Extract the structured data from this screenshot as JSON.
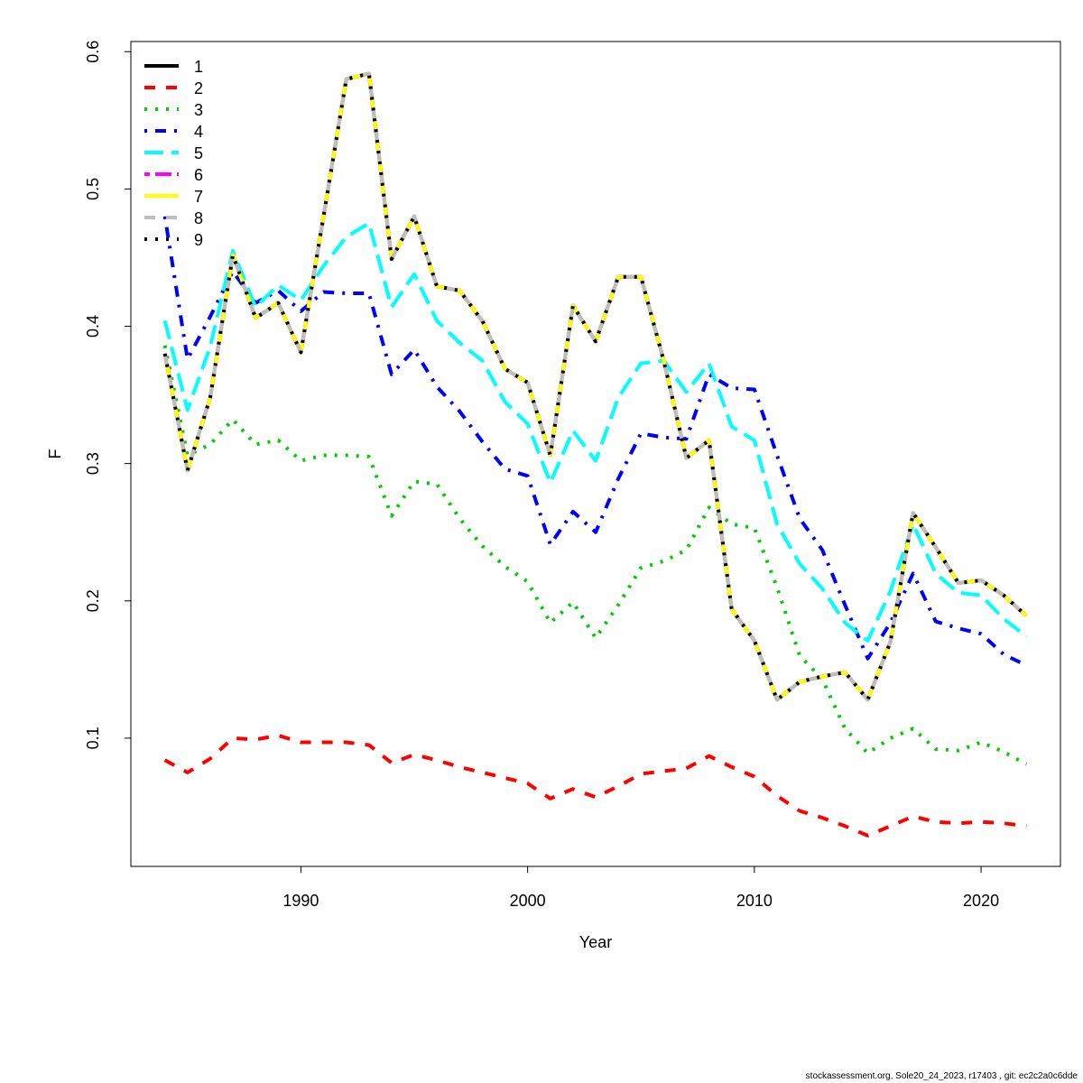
{
  "chart_data": {
    "type": "line",
    "title": "",
    "xlabel": "Year",
    "ylabel": "F",
    "xlim": [
      1982.5,
      2023.5
    ],
    "ylim": [
      0.0066,
      0.6074
    ],
    "xticks": [
      1990,
      2000,
      2010,
      2020
    ],
    "yticks": [
      0.1,
      0.2,
      0.3,
      0.4,
      0.5,
      0.6
    ],
    "ytick_labels": [
      "0.1",
      "0.2",
      "0.3",
      "0.4",
      "0.5",
      "0.6"
    ],
    "grid": false,
    "legend_position": "top-left",
    "x": [
      1984,
      1985,
      1986,
      1987,
      1988,
      1989,
      1990,
      1991,
      1992,
      1993,
      1994,
      1995,
      1996,
      1997,
      1998,
      1999,
      2000,
      2001,
      2002,
      2003,
      2004,
      2005,
      2006,
      2007,
      2008,
      2009,
      2010,
      2011,
      2012,
      2013,
      2014,
      2015,
      2016,
      2017,
      2018,
      2019,
      2020,
      2021,
      2022
    ],
    "series": [
      {
        "name": "1",
        "color": "#000000",
        "lty": "solid",
        "values": "base"
      },
      {
        "name": "2",
        "color": "#FF0000",
        "lty": "dashed",
        "values": [
          0.084,
          0.075,
          0.085,
          0.1,
          0.099,
          0.102,
          0.097,
          0.097,
          0.097,
          0.095,
          0.082,
          0.088,
          0.084,
          0.079,
          0.075,
          0.071,
          0.067,
          0.056,
          0.063,
          0.057,
          0.065,
          0.074,
          0.076,
          0.078,
          0.087,
          0.079,
          0.072,
          0.058,
          0.047,
          0.042,
          0.036,
          0.029,
          0.036,
          0.043,
          0.039,
          0.038,
          0.039,
          0.038,
          0.036
        ]
      },
      {
        "name": "3",
        "color": "#00CD00",
        "lty": "dotted",
        "values": [
          0.386,
          0.306,
          0.314,
          0.332,
          0.314,
          0.317,
          0.302,
          0.306,
          0.306,
          0.305,
          0.262,
          0.287,
          0.285,
          0.26,
          0.24,
          0.225,
          0.214,
          0.184,
          0.199,
          0.173,
          0.197,
          0.224,
          0.229,
          0.237,
          0.268,
          0.256,
          0.253,
          0.21,
          0.16,
          0.143,
          0.107,
          0.089,
          0.1,
          0.107,
          0.092,
          0.091,
          0.097,
          0.09,
          0.081
        ]
      },
      {
        "name": "4",
        "color": "#0000FF",
        "lty": "dotdash",
        "values": [
          0.48,
          0.376,
          0.407,
          0.44,
          0.417,
          0.426,
          0.411,
          0.425,
          0.424,
          0.424,
          0.365,
          0.383,
          0.356,
          0.338,
          0.316,
          0.296,
          0.291,
          0.241,
          0.265,
          0.25,
          0.289,
          0.322,
          0.319,
          0.318,
          0.365,
          0.355,
          0.354,
          0.306,
          0.26,
          0.237,
          0.197,
          0.158,
          0.184,
          0.22,
          0.185,
          0.18,
          0.176,
          0.161,
          0.153
        ]
      },
      {
        "name": "5",
        "color": "#00FFFF",
        "lty": "longdash",
        "values": [
          0.404,
          0.339,
          0.385,
          0.455,
          0.414,
          0.43,
          0.419,
          0.444,
          0.465,
          0.475,
          0.414,
          0.438,
          0.404,
          0.388,
          0.375,
          0.345,
          0.329,
          0.286,
          0.324,
          0.302,
          0.348,
          0.373,
          0.375,
          0.352,
          0.373,
          0.327,
          0.317,
          0.256,
          0.227,
          0.209,
          0.184,
          0.171,
          0.207,
          0.256,
          0.22,
          0.206,
          0.204,
          0.187,
          0.174
        ]
      },
      {
        "name": "6",
        "color": "#FF00FF",
        "lty": "twodash",
        "values": "base"
      },
      {
        "name": "7",
        "color": "#FFFF00",
        "lty": "solid",
        "values": "base"
      },
      {
        "name": "8",
        "color": "#BEBEBE",
        "lty": "dashed",
        "values": "base"
      },
      {
        "name": "9",
        "color": "#000000",
        "lty": "dotted",
        "values": "base"
      }
    ],
    "base_values": [
      0.38,
      0.295,
      0.348,
      0.452,
      0.406,
      0.417,
      0.381,
      0.48,
      0.58,
      0.584,
      0.449,
      0.48,
      0.429,
      0.426,
      0.404,
      0.369,
      0.359,
      0.306,
      0.415,
      0.389,
      0.436,
      0.436,
      0.375,
      0.304,
      0.317,
      0.194,
      0.171,
      0.128,
      0.141,
      0.145,
      0.148,
      0.128,
      0.17,
      0.264,
      0.239,
      0.213,
      0.215,
      0.204,
      0.189
    ]
  },
  "footer": "stockassessment.org, Sole20_24_2023, r17403 , git: ec2c2a0c6dde"
}
